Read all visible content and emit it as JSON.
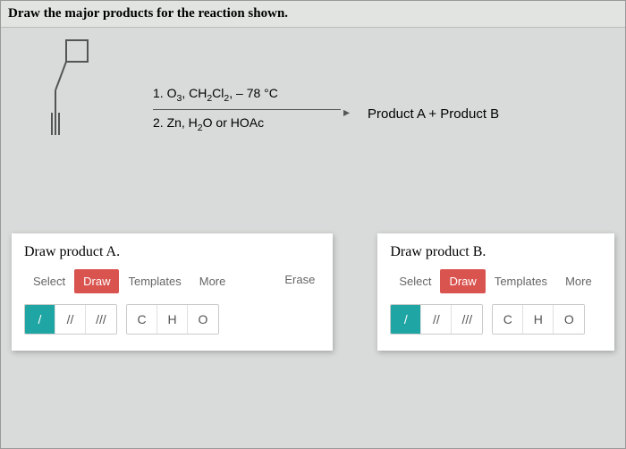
{
  "prompt": "Draw the major products for the reaction shown.",
  "reaction": {
    "step1_html": "1. O<sub>3</sub>, CH<sub>2</sub>Cl<sub>2</sub>, – 78 °C",
    "step2_html": "2. Zn, H<sub>2</sub>O or HOAc",
    "products_text": "Product A + Product B"
  },
  "panelA": {
    "title": "Draw product A.",
    "tabs": {
      "select": "Select",
      "draw": "Draw",
      "templates": "Templates",
      "more": "More"
    },
    "erase": "Erase",
    "bonds": {
      "single": "/",
      "double": "//",
      "triple": "///"
    },
    "atoms": {
      "c": "C",
      "h": "H",
      "o": "O"
    }
  },
  "panelB": {
    "title": "Draw product B.",
    "tabs": {
      "select": "Select",
      "draw": "Draw",
      "templates": "Templates",
      "more": "More"
    },
    "bonds": {
      "single": "/",
      "double": "//",
      "triple": "///"
    },
    "atoms": {
      "c": "C",
      "h": "H",
      "o": "O"
    }
  },
  "colors": {
    "active_tab": "#d9534f",
    "active_tool": "#1fa5a3",
    "page_bg": "#d8dbd9",
    "panel_bg": "#ffffff"
  }
}
